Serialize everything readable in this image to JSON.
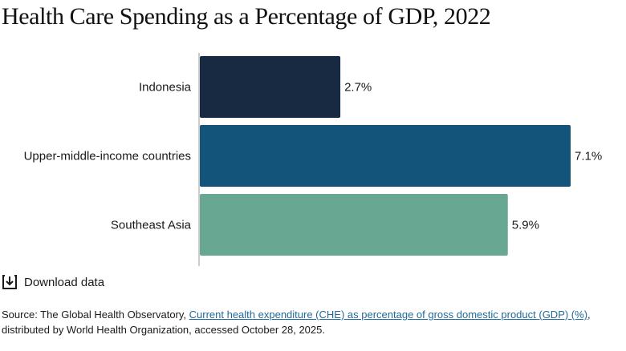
{
  "title": "Health Care Spending as a Percentage of GDP, 2022",
  "chart_data": {
    "type": "bar",
    "orientation": "horizontal",
    "title": "Health Care Spending as a Percentage of GDP, 2022",
    "categories": [
      "Indonesia",
      "Upper-middle-income countries",
      "Southeast Asia"
    ],
    "values": [
      2.7,
      7.1,
      5.9
    ],
    "value_labels": [
      "2.7%",
      "7.1%",
      "5.9%"
    ],
    "colors": [
      "#172a42",
      "#12547a",
      "#68a892"
    ],
    "xlim": [
      0,
      7.1
    ],
    "grid": false,
    "legend": "none"
  },
  "download": {
    "label": "Download data",
    "icon": "download-icon"
  },
  "source": {
    "prefix": "Source: The Global Health Observatory, ",
    "link_text": "Current health expenditure (CHE) as percentage of gross domestic product (GDP) (%)",
    "suffix": ", distributed by World Health Organization, accessed October 28, 2025."
  }
}
